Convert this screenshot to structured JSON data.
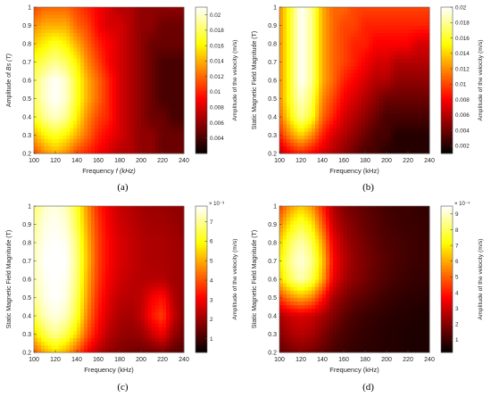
{
  "chart_data": [
    {
      "type": "heatmap",
      "panel_label": "(a)",
      "xlabel": "Frequency",
      "xlabel_italic": "f (kHz)",
      "ylabel": "Amplitude of",
      "ylabel_italic": "Bs (T)",
      "colorbar_label": "Amplitude of the velocity (m/s)",
      "colorbar_exponent": "",
      "xlim": [
        100,
        240
      ],
      "ylim": [
        0.2,
        1.0
      ],
      "xticks": [
        "100",
        "120",
        "140",
        "160",
        "180",
        "200",
        "220",
        "240"
      ],
      "yticks": [
        "0.2",
        "0.3",
        "0.4",
        "0.5",
        "0.6",
        "0.7",
        "0.8",
        "0.9",
        "1"
      ],
      "colorbar_range": [
        0.002,
        0.021
      ],
      "colorbar_ticks": [
        "0.004",
        "0.006",
        "0.008",
        "0.01",
        "0.012",
        "0.014",
        "0.016",
        "0.018",
        "0.02"
      ],
      "colorbar_tick_values": [
        0.004,
        0.006,
        0.008,
        0.01,
        0.012,
        0.014,
        0.016,
        0.018,
        0.02
      ],
      "x": [
        100,
        110,
        120,
        130,
        140,
        150,
        160,
        170,
        180,
        190,
        200,
        210,
        220,
        230,
        240
      ],
      "y": [
        0.2,
        0.3,
        0.4,
        0.5,
        0.6,
        0.7,
        0.8,
        0.9,
        1.0
      ],
      "z": [
        [
          0.011,
          0.013,
          0.014,
          0.013,
          0.011,
          0.01,
          0.009,
          0.008,
          0.007,
          0.007,
          0.006,
          0.006,
          0.005,
          0.005,
          0.005
        ],
        [
          0.014,
          0.016,
          0.017,
          0.016,
          0.014,
          0.012,
          0.01,
          0.009,
          0.008,
          0.007,
          0.006,
          0.006,
          0.005,
          0.005,
          0.005
        ],
        [
          0.017,
          0.019,
          0.02,
          0.019,
          0.016,
          0.013,
          0.011,
          0.01,
          0.008,
          0.007,
          0.006,
          0.005,
          0.005,
          0.004,
          0.004
        ],
        [
          0.018,
          0.02,
          0.021,
          0.02,
          0.017,
          0.014,
          0.012,
          0.01,
          0.008,
          0.007,
          0.006,
          0.005,
          0.004,
          0.004,
          0.004
        ],
        [
          0.018,
          0.02,
          0.021,
          0.02,
          0.017,
          0.014,
          0.012,
          0.01,
          0.008,
          0.007,
          0.006,
          0.005,
          0.004,
          0.004,
          0.004
        ],
        [
          0.017,
          0.018,
          0.019,
          0.018,
          0.016,
          0.013,
          0.011,
          0.009,
          0.008,
          0.007,
          0.006,
          0.005,
          0.004,
          0.004,
          0.004
        ],
        [
          0.015,
          0.016,
          0.017,
          0.016,
          0.014,
          0.012,
          0.01,
          0.009,
          0.008,
          0.007,
          0.006,
          0.005,
          0.005,
          0.005,
          0.005
        ],
        [
          0.013,
          0.014,
          0.014,
          0.014,
          0.012,
          0.011,
          0.009,
          0.008,
          0.008,
          0.007,
          0.006,
          0.006,
          0.005,
          0.005,
          0.005
        ],
        [
          0.011,
          0.012,
          0.012,
          0.012,
          0.011,
          0.01,
          0.009,
          0.008,
          0.007,
          0.007,
          0.006,
          0.006,
          0.006,
          0.006,
          0.006
        ]
      ]
    },
    {
      "type": "heatmap",
      "panel_label": "(b)",
      "xlabel": "Frequency (kHz)",
      "xlabel_italic": "",
      "ylabel": "Static Magnetic Field Magnitude (T)",
      "ylabel_italic": "",
      "colorbar_label": "Amplitude of the velocity (m/s)",
      "colorbar_exponent": "",
      "xlim": [
        100,
        240
      ],
      "ylim": [
        0.2,
        1.0
      ],
      "xticks": [
        "100",
        "120",
        "140",
        "160",
        "180",
        "200",
        "220",
        "240"
      ],
      "yticks": [
        "0.2",
        "0.3",
        "0.4",
        "0.5",
        "0.6",
        "0.7",
        "0.8",
        "0.9",
        "1"
      ],
      "colorbar_range": [
        0.001,
        0.02
      ],
      "colorbar_ticks": [
        "0.002",
        "0.004",
        "0.006",
        "0.008",
        "0.01",
        "0.012",
        "0.014",
        "0.016",
        "0.018",
        "0.02"
      ],
      "colorbar_tick_values": [
        0.002,
        0.004,
        0.006,
        0.008,
        0.01,
        0.012,
        0.014,
        0.016,
        0.018,
        0.02
      ],
      "x": [
        100,
        110,
        120,
        130,
        140,
        150,
        160,
        170,
        180,
        190,
        200,
        210,
        220,
        230,
        240
      ],
      "y": [
        0.2,
        0.3,
        0.4,
        0.5,
        0.6,
        0.7,
        0.8,
        0.9,
        1.0
      ],
      "z": [
        [
          0.006,
          0.008,
          0.009,
          0.008,
          0.007,
          0.006,
          0.005,
          0.004,
          0.003,
          0.003,
          0.002,
          0.002,
          0.002,
          0.002,
          0.002
        ],
        [
          0.009,
          0.012,
          0.014,
          0.012,
          0.009,
          0.007,
          0.006,
          0.005,
          0.004,
          0.003,
          0.003,
          0.002,
          0.002,
          0.002,
          0.002
        ],
        [
          0.011,
          0.015,
          0.018,
          0.016,
          0.011,
          0.009,
          0.007,
          0.006,
          0.005,
          0.004,
          0.003,
          0.003,
          0.003,
          0.003,
          0.003
        ],
        [
          0.012,
          0.016,
          0.019,
          0.017,
          0.012,
          0.01,
          0.008,
          0.007,
          0.006,
          0.005,
          0.004,
          0.004,
          0.004,
          0.004,
          0.004
        ],
        [
          0.012,
          0.016,
          0.02,
          0.018,
          0.013,
          0.011,
          0.009,
          0.008,
          0.007,
          0.006,
          0.006,
          0.005,
          0.005,
          0.005,
          0.005
        ],
        [
          0.012,
          0.016,
          0.02,
          0.018,
          0.013,
          0.011,
          0.01,
          0.009,
          0.008,
          0.007,
          0.007,
          0.006,
          0.006,
          0.006,
          0.006
        ],
        [
          0.012,
          0.016,
          0.02,
          0.018,
          0.013,
          0.011,
          0.01,
          0.009,
          0.009,
          0.008,
          0.008,
          0.008,
          0.008,
          0.007,
          0.007
        ],
        [
          0.012,
          0.016,
          0.02,
          0.018,
          0.013,
          0.011,
          0.01,
          0.01,
          0.009,
          0.009,
          0.009,
          0.009,
          0.009,
          0.009,
          0.009
        ],
        [
          0.012,
          0.016,
          0.02,
          0.018,
          0.013,
          0.011,
          0.011,
          0.01,
          0.01,
          0.01,
          0.01,
          0.01,
          0.01,
          0.01,
          0.01
        ]
      ]
    },
    {
      "type": "heatmap",
      "panel_label": "(c)",
      "xlabel": "Frequency (kHz)",
      "xlabel_italic": "",
      "ylabel": "Static Magnetic Field Magnitude (T)",
      "ylabel_italic": "",
      "colorbar_label": "Amplitude of the velocity (m/s)",
      "colorbar_exponent": "× 10⁻³",
      "xlim": [
        100,
        240
      ],
      "ylim": [
        0.2,
        1.0
      ],
      "xticks": [
        "100",
        "120",
        "140",
        "160",
        "180",
        "200",
        "220",
        "240"
      ],
      "yticks": [
        "0.2",
        "0.3",
        "0.4",
        "0.5",
        "0.6",
        "0.7",
        "0.8",
        "0.9",
        "1"
      ],
      "colorbar_range": [
        0.3,
        7.8
      ],
      "colorbar_ticks": [
        "1",
        "2",
        "3",
        "4",
        "5",
        "6",
        "7"
      ],
      "colorbar_tick_values": [
        1,
        2,
        3,
        4,
        5,
        6,
        7
      ],
      "x": [
        100,
        110,
        120,
        130,
        140,
        150,
        160,
        170,
        180,
        190,
        200,
        210,
        220,
        230,
        240
      ],
      "y": [
        0.2,
        0.3,
        0.4,
        0.5,
        0.6,
        0.7,
        0.8,
        0.9,
        1.0
      ],
      "z": [
        [
          4.0,
          5.0,
          5.5,
          5.0,
          4.0,
          3.0,
          2.3,
          1.9,
          1.7,
          1.6,
          1.5,
          1.5,
          1.6,
          1.3,
          1.2
        ],
        [
          5.5,
          6.5,
          7.0,
          6.5,
          5.5,
          4.0,
          3.0,
          2.3,
          2.0,
          1.9,
          2.0,
          2.5,
          3.0,
          2.0,
          1.6
        ],
        [
          6.5,
          7.3,
          7.6,
          7.3,
          6.3,
          4.5,
          3.3,
          2.6,
          2.2,
          2.1,
          2.4,
          3.3,
          3.8,
          2.5,
          1.8
        ],
        [
          7.0,
          7.6,
          7.8,
          7.6,
          6.6,
          4.8,
          3.5,
          2.8,
          2.4,
          2.3,
          2.4,
          3.0,
          3.3,
          2.3,
          1.9
        ],
        [
          7.2,
          7.7,
          7.8,
          7.7,
          6.8,
          5.0,
          3.7,
          3.0,
          2.6,
          2.4,
          2.3,
          2.3,
          2.3,
          2.1,
          2.0
        ],
        [
          7.3,
          7.8,
          7.8,
          7.8,
          6.9,
          5.2,
          3.8,
          3.1,
          2.7,
          2.5,
          2.3,
          2.2,
          2.2,
          2.1,
          2.0
        ],
        [
          7.2,
          7.7,
          7.8,
          7.7,
          6.8,
          5.1,
          3.8,
          3.1,
          2.7,
          2.5,
          2.3,
          2.2,
          2.2,
          2.1,
          2.0
        ],
        [
          7.0,
          7.6,
          7.7,
          7.5,
          6.5,
          4.9,
          3.7,
          3.0,
          2.6,
          2.4,
          2.2,
          2.1,
          2.1,
          2.0,
          1.9
        ],
        [
          6.7,
          7.4,
          7.6,
          7.3,
          6.3,
          4.7,
          3.5,
          2.9,
          2.5,
          2.3,
          2.1,
          2.0,
          2.0,
          1.9,
          1.9
        ]
      ]
    },
    {
      "type": "heatmap",
      "panel_label": "(d)",
      "xlabel": "Frequency (kHz)",
      "xlabel_italic": "",
      "ylabel": "Static Magnetic Field Magnitude (T)",
      "ylabel_italic": "",
      "colorbar_label": "Amplitude of the velocity (m/s)",
      "colorbar_exponent": "× 10⁻⁴",
      "xlim": [
        100,
        240
      ],
      "ylim": [
        0.2,
        1.0
      ],
      "xticks": [
        "100",
        "120",
        "140",
        "160",
        "180",
        "200",
        "220",
        "240"
      ],
      "yticks": [
        "0.2",
        "0.3",
        "0.4",
        "0.5",
        "0.6",
        "0.7",
        "0.8",
        "0.9",
        "1"
      ],
      "colorbar_range": [
        0.2,
        9.5
      ],
      "colorbar_ticks": [
        "1",
        "2",
        "3",
        "4",
        "5",
        "6",
        "7",
        "8",
        "9"
      ],
      "colorbar_tick_values": [
        1,
        2,
        3,
        4,
        5,
        6,
        7,
        8,
        9
      ],
      "x": [
        100,
        110,
        120,
        130,
        140,
        150,
        160,
        170,
        180,
        190,
        200,
        210,
        220,
        230,
        240
      ],
      "y": [
        0.2,
        0.3,
        0.4,
        0.5,
        0.6,
        0.7,
        0.8,
        0.9,
        1.0
      ],
      "z": [
        [
          1.5,
          1.8,
          2.0,
          1.8,
          1.5,
          1.2,
          1.0,
          0.9,
          0.8,
          0.8,
          0.7,
          0.7,
          0.6,
          0.6,
          0.6
        ],
        [
          2.0,
          2.5,
          2.7,
          2.5,
          2.0,
          1.5,
          1.2,
          1.0,
          0.9,
          0.8,
          0.7,
          0.7,
          0.6,
          0.6,
          0.6
        ],
        [
          2.5,
          3.0,
          3.2,
          3.0,
          2.5,
          2.0,
          1.5,
          1.2,
          1.0,
          0.9,
          0.8,
          0.7,
          0.7,
          0.6,
          0.6
        ],
        [
          4.5,
          5.5,
          6.0,
          5.5,
          4.0,
          2.5,
          2.0,
          1.6,
          1.4,
          1.2,
          1.0,
          0.9,
          0.8,
          0.8,
          0.7
        ],
        [
          6.5,
          8.0,
          8.8,
          8.0,
          6.0,
          3.5,
          2.6,
          2.1,
          1.8,
          1.5,
          1.3,
          1.1,
          1.0,
          0.9,
          0.9
        ],
        [
          7.0,
          8.5,
          9.2,
          8.5,
          6.5,
          3.8,
          2.8,
          2.2,
          1.9,
          1.6,
          1.4,
          1.2,
          1.1,
          1.0,
          1.0
        ],
        [
          6.5,
          8.0,
          8.8,
          8.0,
          6.0,
          3.5,
          2.6,
          2.1,
          1.8,
          1.5,
          1.3,
          1.2,
          1.1,
          1.0,
          1.0
        ],
        [
          5.5,
          7.0,
          7.8,
          7.0,
          5.0,
          3.0,
          2.3,
          1.9,
          1.6,
          1.4,
          1.2,
          1.1,
          1.0,
          1.0,
          0.9
        ],
        [
          4.5,
          5.8,
          6.5,
          5.8,
          4.2,
          2.6,
          2.0,
          1.7,
          1.5,
          1.3,
          1.1,
          1.0,
          1.0,
          0.9,
          0.9
        ]
      ]
    }
  ]
}
